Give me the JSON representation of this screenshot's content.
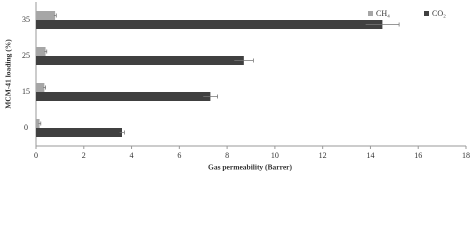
{
  "chart_data": {
    "type": "barh",
    "x_label": "Gas permeability (Barrer)",
    "y_label": "MCM-41 loading (%)",
    "categories": [
      "0",
      "15",
      "25",
      "35"
    ],
    "series": [
      {
        "name": "CH₄",
        "color": "#a6a6a6",
        "values": [
          0.15,
          0.35,
          0.4,
          0.8
        ],
        "errors": [
          0.05,
          0.05,
          0.05,
          0.05
        ]
      },
      {
        "name": "CO₂",
        "color": "#404040",
        "values": [
          3.6,
          7.3,
          8.7,
          14.5
        ],
        "errors": [
          0.1,
          0.3,
          0.4,
          0.7
        ]
      }
    ],
    "xlim": [
      0,
      18
    ],
    "xticks": [
      0,
      2,
      4,
      6,
      8,
      10,
      12,
      14,
      16,
      18
    ],
    "grid": false,
    "legend": "top-right"
  }
}
